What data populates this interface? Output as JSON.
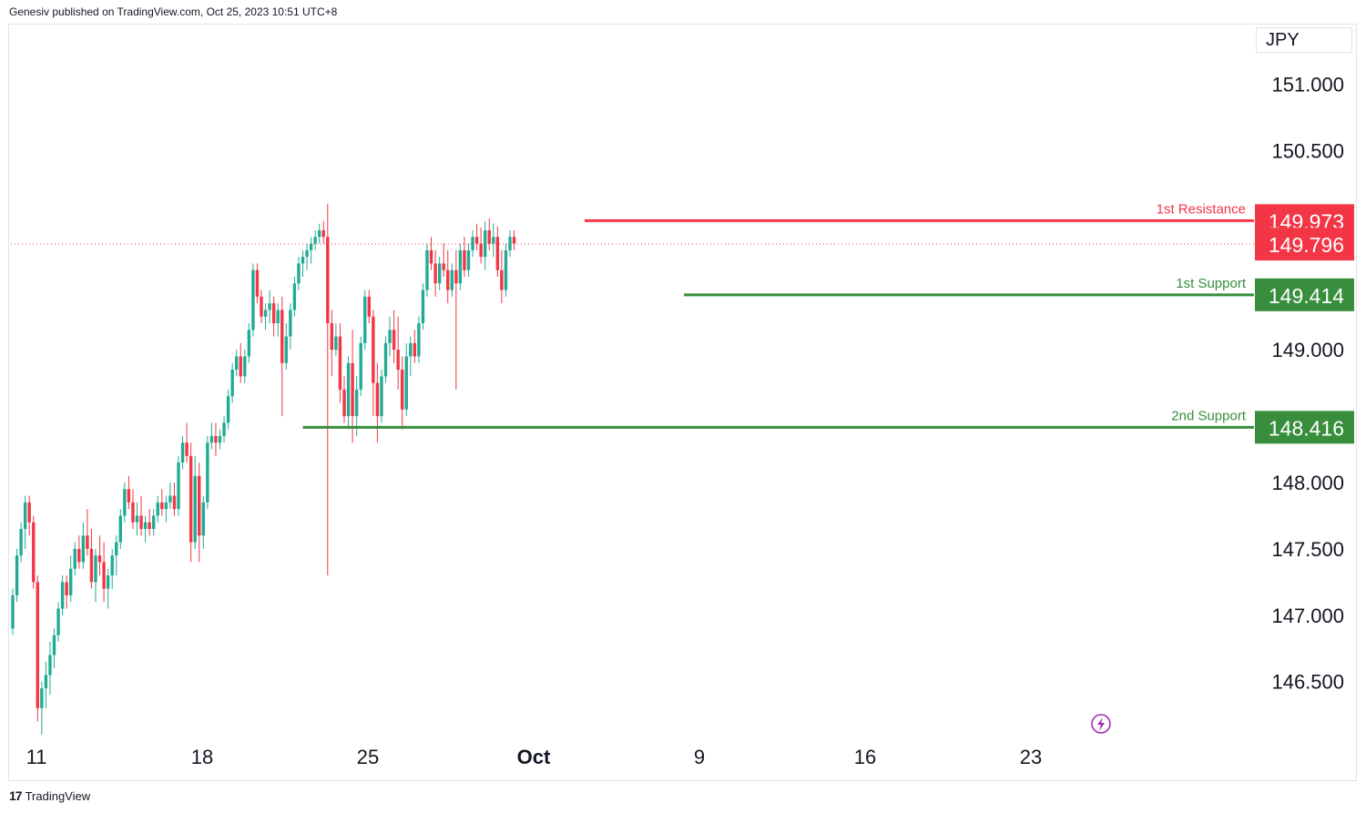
{
  "header": {
    "published": "Genesiv published on TradingView.com, Oct 25, 2023 10:51 UTC+8"
  },
  "footer": {
    "brand": "TradingView",
    "logo_text": "17"
  },
  "currency_label": "JPY",
  "colors": {
    "up": "#22ab94",
    "down": "#f23645",
    "resistance": "#f23645",
    "support": "#388e3c"
  },
  "chart_data": {
    "type": "candlestick",
    "title": "",
    "ylim": [
      146.1,
      151.45
    ],
    "y_ticks": [
      "146.500",
      "147.000",
      "147.500",
      "148.000",
      "149.000",
      "150.500",
      "151.000"
    ],
    "x_ticks": [
      {
        "label": "11",
        "index": 0
      },
      {
        "label": "18",
        "index": 40
      },
      {
        "label": "25",
        "index": 80
      },
      {
        "label": "Oct",
        "index": 120
      },
      {
        "label": "9",
        "index": 160
      },
      {
        "label": "16",
        "index": 200
      },
      {
        "label": "23",
        "index": 240
      }
    ],
    "current_price": {
      "label": "149.796",
      "value": 149.796
    },
    "levels": [
      {
        "name": "1st Resistance",
        "label": "149.973",
        "value": 149.973,
        "kind": "resistance",
        "from_index": 138
      },
      {
        "name": "1st Support",
        "label": "149.414",
        "value": 149.414,
        "kind": "support",
        "from_index": 162
      },
      {
        "name": "2nd Support",
        "label": "148.416",
        "value": 148.416,
        "kind": "support",
        "from_index": 70
      }
    ],
    "candles": [
      [
        146.9,
        147.2,
        146.85,
        147.15
      ],
      [
        147.15,
        147.5,
        147.1,
        147.45
      ],
      [
        147.45,
        147.7,
        147.4,
        147.65
      ],
      [
        147.65,
        147.9,
        147.5,
        147.85
      ],
      [
        147.85,
        147.9,
        147.6,
        147.7
      ],
      [
        147.7,
        147.75,
        147.2,
        147.25
      ],
      [
        147.25,
        147.3,
        146.2,
        146.3
      ],
      [
        146.3,
        146.5,
        146.1,
        146.45
      ],
      [
        146.45,
        146.65,
        146.3,
        146.55
      ],
      [
        146.55,
        146.8,
        146.4,
        146.7
      ],
      [
        146.7,
        146.9,
        146.6,
        146.85
      ],
      [
        146.85,
        147.1,
        146.8,
        147.05
      ],
      [
        147.05,
        147.3,
        147.0,
        147.25
      ],
      [
        147.25,
        147.3,
        147.05,
        147.15
      ],
      [
        147.15,
        147.45,
        147.1,
        147.35
      ],
      [
        147.35,
        147.55,
        147.3,
        147.5
      ],
      [
        147.5,
        147.6,
        147.35,
        147.4
      ],
      [
        147.4,
        147.7,
        147.35,
        147.6
      ],
      [
        147.6,
        147.8,
        147.45,
        147.5
      ],
      [
        147.5,
        147.65,
        147.2,
        147.25
      ],
      [
        147.25,
        147.5,
        147.1,
        147.45
      ],
      [
        147.45,
        147.6,
        147.3,
        147.4
      ],
      [
        147.4,
        147.55,
        147.1,
        147.2
      ],
      [
        147.2,
        147.35,
        147.05,
        147.3
      ],
      [
        147.3,
        147.5,
        147.2,
        147.45
      ],
      [
        147.45,
        147.6,
        147.3,
        147.55
      ],
      [
        147.55,
        147.8,
        147.5,
        147.75
      ],
      [
        147.75,
        148.0,
        147.7,
        147.95
      ],
      [
        147.95,
        148.05,
        147.8,
        147.85
      ],
      [
        147.85,
        147.95,
        147.65,
        147.7
      ],
      [
        147.7,
        147.85,
        147.6,
        147.75
      ],
      [
        147.75,
        147.9,
        147.6,
        147.65
      ],
      [
        147.65,
        147.75,
        147.55,
        147.7
      ],
      [
        147.7,
        147.8,
        147.6,
        147.65
      ],
      [
        147.65,
        147.8,
        147.6,
        147.75
      ],
      [
        147.75,
        147.9,
        147.7,
        147.85
      ],
      [
        147.85,
        147.95,
        147.75,
        147.8
      ],
      [
        147.8,
        147.9,
        147.7,
        147.85
      ],
      [
        147.85,
        148.0,
        147.8,
        147.9
      ],
      [
        147.9,
        148.0,
        147.75,
        147.8
      ],
      [
        147.8,
        148.2,
        147.75,
        148.15
      ],
      [
        148.15,
        148.35,
        148.1,
        148.3
      ],
      [
        148.3,
        148.45,
        148.15,
        148.2
      ],
      [
        148.2,
        148.3,
        147.4,
        147.55
      ],
      [
        147.55,
        148.2,
        147.5,
        148.05
      ],
      [
        148.05,
        148.15,
        147.4,
        147.6
      ],
      [
        147.6,
        147.9,
        147.5,
        147.85
      ],
      [
        147.85,
        148.35,
        147.8,
        148.3
      ],
      [
        148.3,
        148.45,
        148.25,
        148.35
      ],
      [
        148.35,
        148.45,
        148.2,
        148.3
      ],
      [
        148.3,
        148.4,
        148.25,
        148.35
      ],
      [
        148.35,
        148.5,
        148.3,
        148.45
      ],
      [
        148.45,
        148.7,
        148.4,
        148.65
      ],
      [
        148.65,
        148.9,
        148.6,
        148.85
      ],
      [
        148.85,
        149.0,
        148.8,
        148.95
      ],
      [
        148.95,
        149.05,
        148.75,
        148.8
      ],
      [
        148.8,
        149.0,
        148.75,
        148.95
      ],
      [
        148.95,
        149.2,
        148.9,
        149.15
      ],
      [
        149.15,
        149.65,
        149.1,
        149.6
      ],
      [
        149.6,
        149.65,
        149.35,
        149.4
      ],
      [
        149.4,
        149.45,
        149.2,
        149.25
      ],
      [
        149.25,
        149.35,
        149.15,
        149.3
      ],
      [
        149.3,
        149.45,
        149.2,
        149.35
      ],
      [
        149.35,
        149.4,
        149.1,
        149.2
      ],
      [
        149.2,
        149.35,
        149.1,
        149.3
      ],
      [
        149.3,
        149.4,
        148.5,
        148.9
      ],
      [
        148.9,
        149.2,
        148.85,
        149.1
      ],
      [
        149.1,
        149.35,
        149.0,
        149.3
      ],
      [
        149.3,
        149.55,
        149.25,
        149.5
      ],
      [
        149.5,
        149.7,
        149.45,
        149.65
      ],
      [
        149.65,
        149.75,
        149.55,
        149.7
      ],
      [
        149.7,
        149.8,
        149.6,
        149.75
      ],
      [
        149.75,
        149.85,
        149.65,
        149.8
      ],
      [
        149.8,
        149.9,
        149.75,
        149.85
      ],
      [
        149.85,
        149.95,
        149.8,
        149.9
      ],
      [
        149.9,
        149.97,
        149.8,
        149.85
      ],
      [
        149.85,
        150.1,
        147.3,
        149.2
      ],
      [
        149.2,
        149.3,
        148.8,
        149.0
      ],
      [
        149.0,
        149.2,
        148.95,
        149.1
      ],
      [
        149.1,
        149.2,
        148.6,
        148.7
      ],
      [
        148.7,
        148.8,
        148.45,
        148.5
      ],
      [
        148.5,
        148.95,
        148.4,
        148.9
      ],
      [
        148.9,
        149.15,
        148.3,
        148.5
      ],
      [
        148.5,
        148.8,
        148.35,
        148.7
      ],
      [
        148.7,
        149.1,
        148.65,
        149.05
      ],
      [
        149.05,
        149.45,
        149.0,
        149.4
      ],
      [
        149.4,
        149.45,
        149.2,
        149.25
      ],
      [
        149.25,
        149.3,
        148.5,
        148.75
      ],
      [
        148.75,
        148.9,
        148.3,
        148.5
      ],
      [
        148.5,
        148.85,
        148.45,
        148.8
      ],
      [
        148.8,
        149.1,
        148.75,
        149.05
      ],
      [
        149.05,
        149.25,
        148.95,
        149.15
      ],
      [
        149.15,
        149.3,
        148.9,
        149.0
      ],
      [
        149.0,
        149.25,
        148.7,
        148.85
      ],
      [
        148.85,
        148.95,
        148.4,
        148.55
      ],
      [
        148.55,
        149.05,
        148.5,
        148.95
      ],
      [
        148.95,
        149.1,
        148.8,
        149.05
      ],
      [
        149.05,
        149.15,
        148.9,
        148.95
      ],
      [
        148.95,
        149.25,
        148.9,
        149.2
      ],
      [
        149.2,
        149.5,
        149.15,
        149.45
      ],
      [
        149.45,
        149.8,
        149.4,
        149.75
      ],
      [
        149.75,
        149.85,
        149.6,
        149.65
      ],
      [
        149.65,
        149.75,
        149.4,
        149.5
      ],
      [
        149.5,
        149.7,
        149.45,
        149.65
      ],
      [
        149.65,
        149.8,
        149.55,
        149.6
      ],
      [
        149.6,
        149.75,
        149.35,
        149.45
      ],
      [
        149.45,
        149.65,
        149.4,
        149.6
      ],
      [
        149.6,
        149.75,
        148.7,
        149.5
      ],
      [
        149.5,
        149.8,
        149.45,
        149.75
      ],
      [
        149.75,
        149.85,
        149.55,
        149.6
      ],
      [
        149.6,
        149.8,
        149.55,
        149.75
      ],
      [
        149.75,
        149.9,
        149.7,
        149.85
      ],
      [
        149.85,
        149.95,
        149.75,
        149.8
      ],
      [
        149.8,
        149.92,
        149.65,
        149.7
      ],
      [
        149.7,
        149.97,
        149.6,
        149.9
      ],
      [
        149.9,
        149.99,
        149.75,
        149.8
      ],
      [
        149.8,
        149.95,
        149.7,
        149.85
      ],
      [
        149.85,
        149.93,
        149.55,
        149.6
      ],
      [
        149.6,
        149.75,
        149.35,
        149.45
      ],
      [
        149.45,
        149.8,
        149.4,
        149.75
      ],
      [
        149.75,
        149.9,
        149.7,
        149.85
      ],
      [
        149.85,
        149.9,
        149.75,
        149.8
      ]
    ]
  }
}
